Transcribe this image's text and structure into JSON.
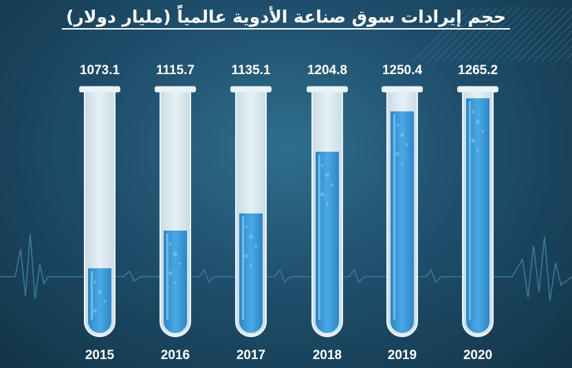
{
  "chart_data": {
    "type": "bar",
    "title": "حجم إيرادات سوق صناعة الأدوية عالمياً (مليار دولار)",
    "categories": [
      "2015",
      "2016",
      "2017",
      "2018",
      "2019",
      "2020"
    ],
    "values": [
      1073.1,
      1115.7,
      1135.1,
      1204.8,
      1250.4,
      1265.2
    ],
    "value_labels": [
      "1073.1",
      "1115.7",
      "1135.1",
      "1204.8",
      "1250.4",
      "1265.2"
    ],
    "ylim": [
      1000,
      1270
    ],
    "xlabel": "",
    "ylabel": "",
    "legend": "none",
    "grid": false
  },
  "colors": {
    "background": "#1f4f6c",
    "tube_glass": "#dbe8ee",
    "liquid": "#3a9ad8",
    "liquid_light": "#56b4ec",
    "pulse_line": "#3d7fa6",
    "pulse_red": "#e0484e"
  }
}
